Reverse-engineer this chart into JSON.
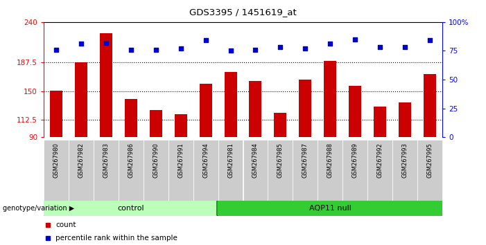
{
  "title": "GDS3395 / 1451619_at",
  "categories": [
    "GSM267980",
    "GSM267982",
    "GSM267983",
    "GSM267986",
    "GSM267990",
    "GSM267991",
    "GSM267994",
    "GSM267981",
    "GSM267984",
    "GSM267985",
    "GSM267987",
    "GSM267988",
    "GSM267989",
    "GSM267992",
    "GSM267993",
    "GSM267995"
  ],
  "bar_values": [
    151,
    188,
    225,
    140,
    125,
    120,
    160,
    175,
    163,
    122,
    165,
    189,
    157,
    130,
    135,
    172
  ],
  "percentile_values": [
    76,
    81,
    82,
    76,
    76,
    77,
    84,
    75,
    76,
    78,
    77,
    81,
    85,
    78,
    78,
    84
  ],
  "control_count": 7,
  "aqp11_count": 9,
  "ymin": 90,
  "ymax": 240,
  "yticks": [
    90,
    112.5,
    150,
    187.5,
    240
  ],
  "ytick_labels": [
    "90",
    "112.5",
    "150",
    "187.5",
    "240"
  ],
  "y2min": 0,
  "y2max": 100,
  "y2ticks": [
    0,
    25,
    50,
    75,
    100
  ],
  "y2tick_labels": [
    "0",
    "25",
    "50",
    "75",
    "100%"
  ],
  "bar_color": "#cc0000",
  "percentile_color": "#0000cc",
  "control_color": "#bbffbb",
  "aqp11_color": "#33cc33",
  "control_label": "control",
  "aqp11_label": "AQP11 null",
  "group_label": "genotype/variation",
  "legend_count_label": "count",
  "legend_pct_label": "percentile rank within the sample",
  "bg_color": "#ffffff"
}
